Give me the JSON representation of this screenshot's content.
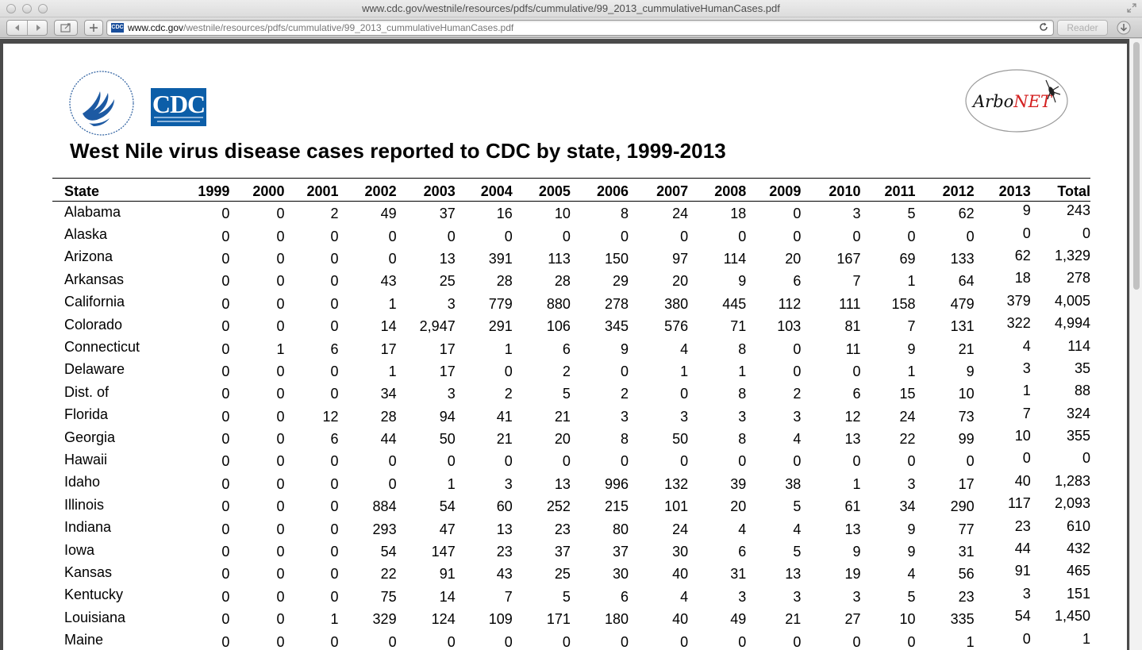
{
  "browser": {
    "window_title": "www.cdc.gov/westnile/resources/pdfs/cummulative/99_2013_cummulativeHumanCases.pdf",
    "url_host": "www.cdc.gov",
    "url_path": "/westnile/resources/pdfs/cummulative/99_2013_cummulativeHumanCases.pdf",
    "reader_label": "Reader",
    "favicon_text": "CDC"
  },
  "document": {
    "cdc_logo_text": "CDC",
    "arbonet_logo_text_1": "Arbo",
    "arbonet_logo_text_2": "NET",
    "title": "West Nile virus disease cases reported to CDC by state, 1999-2013",
    "columns": [
      "State",
      "1999",
      "2000",
      "2001",
      "2002",
      "2003",
      "2004",
      "2005",
      "2006",
      "2007",
      "2008",
      "2009",
      "2010",
      "2011",
      "2012",
      "2013",
      "Total"
    ],
    "rows": [
      [
        "Alabama",
        "0",
        "0",
        "2",
        "49",
        "37",
        "16",
        "10",
        "8",
        "24",
        "18",
        "0",
        "3",
        "5",
        "62",
        "9",
        "243"
      ],
      [
        "Alaska",
        "0",
        "0",
        "0",
        "0",
        "0",
        "0",
        "0",
        "0",
        "0",
        "0",
        "0",
        "0",
        "0",
        "0",
        "0",
        "0"
      ],
      [
        "Arizona",
        "0",
        "0",
        "0",
        "0",
        "13",
        "391",
        "113",
        "150",
        "97",
        "114",
        "20",
        "167",
        "69",
        "133",
        "62",
        "1,329"
      ],
      [
        "Arkansas",
        "0",
        "0",
        "0",
        "43",
        "25",
        "28",
        "28",
        "29",
        "20",
        "9",
        "6",
        "7",
        "1",
        "64",
        "18",
        "278"
      ],
      [
        "California",
        "0",
        "0",
        "0",
        "1",
        "3",
        "779",
        "880",
        "278",
        "380",
        "445",
        "112",
        "111",
        "158",
        "479",
        "379",
        "4,005"
      ],
      [
        "Colorado",
        "0",
        "0",
        "0",
        "14",
        "2,947",
        "291",
        "106",
        "345",
        "576",
        "71",
        "103",
        "81",
        "7",
        "131",
        "322",
        "4,994"
      ],
      [
        "Connecticut",
        "0",
        "1",
        "6",
        "17",
        "17",
        "1",
        "6",
        "9",
        "4",
        "8",
        "0",
        "11",
        "9",
        "21",
        "4",
        "114"
      ],
      [
        "Delaware",
        "0",
        "0",
        "0",
        "1",
        "17",
        "0",
        "2",
        "0",
        "1",
        "1",
        "0",
        "0",
        "1",
        "9",
        "3",
        "35"
      ],
      [
        "Dist. of",
        "0",
        "0",
        "0",
        "34",
        "3",
        "2",
        "5",
        "2",
        "0",
        "8",
        "2",
        "6",
        "15",
        "10",
        "1",
        "88"
      ],
      [
        "Florida",
        "0",
        "0",
        "12",
        "28",
        "94",
        "41",
        "21",
        "3",
        "3",
        "3",
        "3",
        "12",
        "24",
        "73",
        "7",
        "324"
      ],
      [
        "Georgia",
        "0",
        "0",
        "6",
        "44",
        "50",
        "21",
        "20",
        "8",
        "50",
        "8",
        "4",
        "13",
        "22",
        "99",
        "10",
        "355"
      ],
      [
        "Hawaii",
        "0",
        "0",
        "0",
        "0",
        "0",
        "0",
        "0",
        "0",
        "0",
        "0",
        "0",
        "0",
        "0",
        "0",
        "0",
        "0"
      ],
      [
        "Idaho",
        "0",
        "0",
        "0",
        "0",
        "1",
        "3",
        "13",
        "996",
        "132",
        "39",
        "38",
        "1",
        "3",
        "17",
        "40",
        "1,283"
      ],
      [
        "Illinois",
        "0",
        "0",
        "0",
        "884",
        "54",
        "60",
        "252",
        "215",
        "101",
        "20",
        "5",
        "61",
        "34",
        "290",
        "117",
        "2,093"
      ],
      [
        "Indiana",
        "0",
        "0",
        "0",
        "293",
        "47",
        "13",
        "23",
        "80",
        "24",
        "4",
        "4",
        "13",
        "9",
        "77",
        "23",
        "610"
      ],
      [
        "Iowa",
        "0",
        "0",
        "0",
        "54",
        "147",
        "23",
        "37",
        "37",
        "30",
        "6",
        "5",
        "9",
        "9",
        "31",
        "44",
        "432"
      ],
      [
        "Kansas",
        "0",
        "0",
        "0",
        "22",
        "91",
        "43",
        "25",
        "30",
        "40",
        "31",
        "13",
        "19",
        "4",
        "56",
        "91",
        "465"
      ],
      [
        "Kentucky",
        "0",
        "0",
        "0",
        "75",
        "14",
        "7",
        "5",
        "6",
        "4",
        "3",
        "3",
        "3",
        "5",
        "23",
        "3",
        "151"
      ],
      [
        "Louisiana",
        "0",
        "0",
        "1",
        "329",
        "124",
        "109",
        "171",
        "180",
        "40",
        "49",
        "21",
        "27",
        "10",
        "335",
        "54",
        "1,450"
      ],
      [
        "Maine",
        "0",
        "0",
        "0",
        "0",
        "0",
        "0",
        "0",
        "0",
        "0",
        "0",
        "0",
        "0",
        "0",
        "1",
        "0",
        "1"
      ]
    ]
  }
}
